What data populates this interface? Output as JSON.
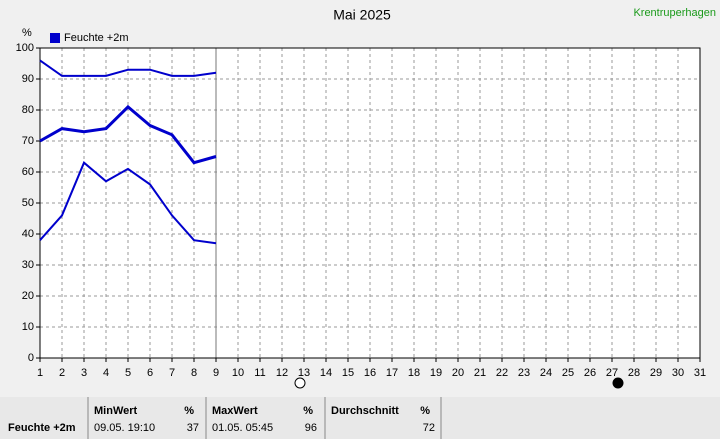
{
  "chart_data": {
    "type": "line",
    "title": "Mai 2025",
    "station": "Krentruperhagen",
    "y_label": "%",
    "legend": "Feuchte +2m",
    "x": [
      1,
      2,
      3,
      4,
      5,
      6,
      7,
      8,
      9
    ],
    "series": [
      {
        "color": "#0000cc",
        "values": [
          96,
          91,
          91,
          91,
          93,
          93,
          91,
          91,
          92
        ]
      },
      {
        "color": "#0000cc",
        "values": [
          70,
          74,
          73,
          74,
          81,
          75,
          72,
          63,
          65
        ]
      },
      {
        "color": "#0000cc",
        "values": [
          38,
          46,
          63,
          57,
          61,
          56,
          46,
          38,
          37
        ]
      }
    ],
    "xlim": [
      1,
      31
    ],
    "xticks": [
      1,
      2,
      3,
      4,
      5,
      6,
      7,
      8,
      9,
      10,
      11,
      12,
      13,
      14,
      15,
      16,
      17,
      18,
      19,
      20,
      21,
      22,
      23,
      24,
      25,
      26,
      27,
      28,
      29,
      30,
      31
    ],
    "ylim": [
      0,
      100
    ],
    "yticks": [
      0,
      10,
      20,
      30,
      40,
      50,
      60,
      70,
      80,
      90,
      100
    ],
    "grid": true
  },
  "summary": {
    "label": "Feuchte +2m",
    "columns": [
      {
        "header": "MinWert",
        "unit": "%",
        "time": "09.05.  19:10",
        "value": 37
      },
      {
        "header": "MaxWert",
        "unit": "%",
        "time": "01.05.  05:45",
        "value": 96
      },
      {
        "header": "Durchschnitt",
        "unit": "%",
        "value": 72
      }
    ]
  }
}
